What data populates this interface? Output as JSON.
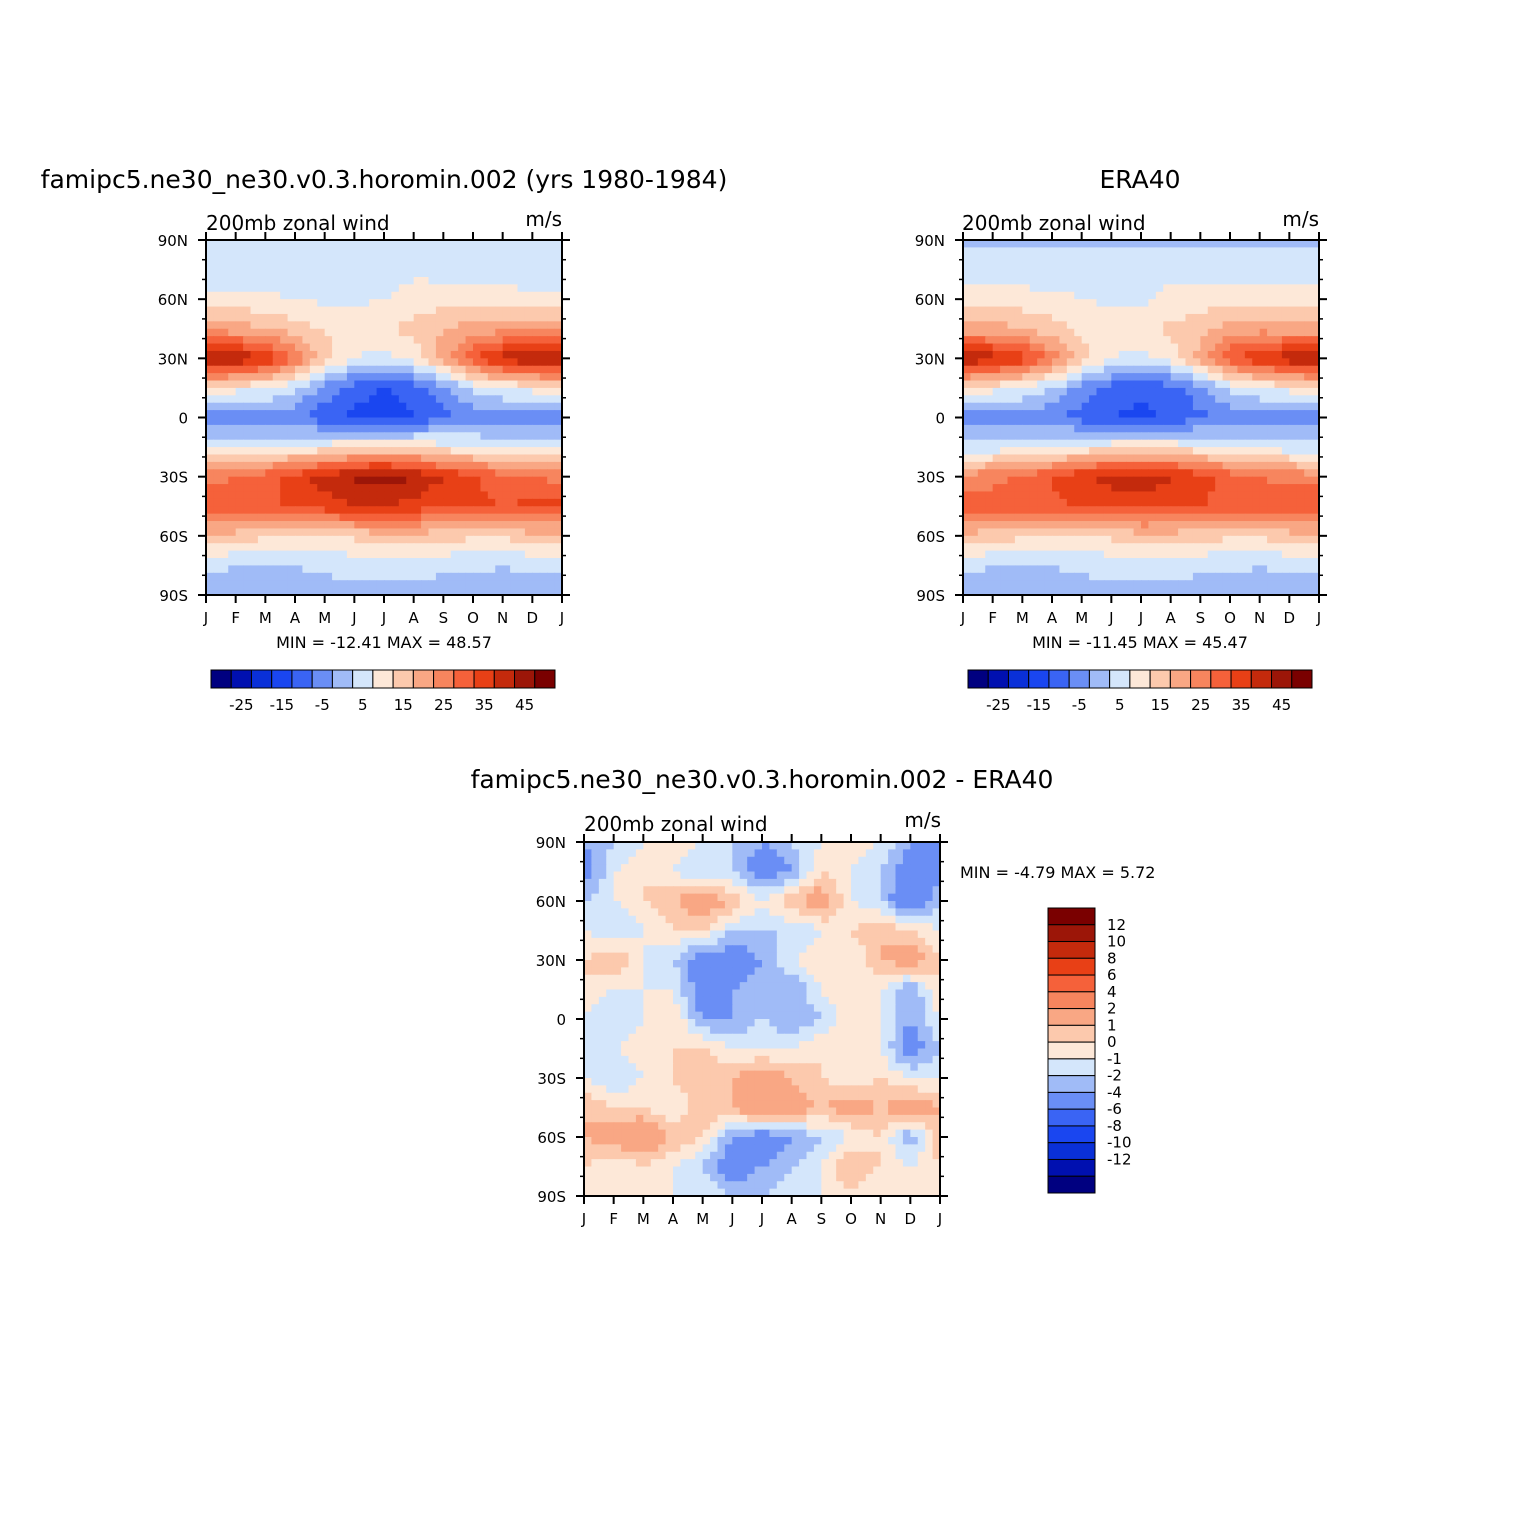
{
  "chart_data": [
    {
      "type": "heatmap",
      "title": "famipc5.ne30_ne30.v0.3.horomin.002 (yrs 1980-1984)",
      "subtitle": "200mb zonal wind",
      "units": "m/s",
      "x_ticks": [
        "J",
        "F",
        "M",
        "A",
        "M",
        "J",
        "J",
        "A",
        "S",
        "O",
        "N",
        "D",
        "J"
      ],
      "y_ticks": [
        "90N",
        "60N",
        "30N",
        "0",
        "30S",
        "60S",
        "90S"
      ],
      "y_values": [
        90,
        60,
        30,
        0,
        -30,
        -60,
        -90
      ],
      "stats": "MIN = -12.41 MAX = 48.57",
      "min": -12.41,
      "max": 48.57,
      "colorbar_labels": [
        "-25",
        "-15",
        "-5",
        "5",
        "15",
        "25",
        "35",
        "45"
      ],
      "colorbar_levels": [
        -30,
        -25,
        -20,
        -15,
        -10,
        -5,
        0,
        5,
        10,
        15,
        20,
        25,
        30,
        35,
        40,
        45,
        50
      ],
      "bands": [
        {
          "lat": 90,
          "values": [
            5,
            5,
            5,
            5,
            5,
            5,
            5,
            5,
            5,
            5,
            5,
            5,
            5
          ]
        },
        {
          "lat": 75,
          "values": [
            6,
            6,
            6,
            7,
            9,
            10,
            8,
            9,
            8,
            7,
            6,
            6,
            6
          ]
        },
        {
          "lat": 60,
          "values": [
            12,
            12,
            11,
            10,
            9,
            9,
            10,
            12,
            13,
            14,
            13,
            12,
            12
          ]
        },
        {
          "lat": 45,
          "values": [
            22,
            22,
            20,
            17,
            14,
            13,
            14,
            17,
            20,
            22,
            23,
            22,
            22
          ]
        },
        {
          "lat": 30,
          "values": [
            48,
            45,
            40,
            30,
            18,
            10,
            8,
            12,
            22,
            35,
            42,
            46,
            48
          ]
        },
        {
          "lat": 15,
          "values": [
            14,
            12,
            10,
            6,
            -2,
            -8,
            -10,
            -8,
            -2,
            6,
            10,
            12,
            14
          ]
        },
        {
          "lat": 0,
          "values": [
            -3,
            -3,
            -2,
            -4,
            -8,
            -11,
            -12,
            -10,
            -6,
            -3,
            -3,
            -3,
            -3
          ]
        },
        {
          "lat": -15,
          "values": [
            8,
            8,
            9,
            10,
            12,
            14,
            15,
            14,
            12,
            10,
            9,
            8,
            8
          ]
        },
        {
          "lat": -30,
          "values": [
            28,
            30,
            33,
            38,
            42,
            46,
            48,
            45,
            40,
            36,
            32,
            30,
            28
          ]
        },
        {
          "lat": -45,
          "values": [
            36,
            34,
            34,
            36,
            38,
            40,
            40,
            38,
            36,
            36,
            35,
            36,
            36
          ]
        },
        {
          "lat": -60,
          "values": [
            18,
            18,
            16,
            14,
            14,
            16,
            18,
            18,
            17,
            16,
            16,
            18,
            18
          ]
        },
        {
          "lat": -75,
          "values": [
            6,
            5,
            5,
            5,
            6,
            7,
            7,
            7,
            6,
            6,
            5,
            6,
            6
          ]
        },
        {
          "lat": -90,
          "values": [
            3,
            3,
            3,
            3,
            3,
            3,
            3,
            3,
            3,
            3,
            3,
            3,
            3
          ]
        }
      ]
    },
    {
      "type": "heatmap",
      "title": "ERA40",
      "subtitle": "200mb zonal wind",
      "units": "m/s",
      "x_ticks": [
        "J",
        "F",
        "M",
        "A",
        "M",
        "J",
        "J",
        "A",
        "S",
        "O",
        "N",
        "D",
        "J"
      ],
      "y_ticks": [
        "90N",
        "60N",
        "30N",
        "0",
        "30S",
        "60S",
        "90S"
      ],
      "y_values": [
        90,
        60,
        30,
        0,
        -30,
        -60,
        -90
      ],
      "stats": "MIN = -11.45 MAX = 45.47",
      "min": -11.45,
      "max": 45.47,
      "colorbar_labels": [
        "-25",
        "-15",
        "-5",
        "5",
        "15",
        "25",
        "35",
        "45"
      ],
      "colorbar_levels": [
        -30,
        -25,
        -20,
        -15,
        -10,
        -5,
        0,
        5,
        10,
        15,
        20,
        25,
        30,
        35,
        40,
        45,
        50
      ],
      "bands": [
        {
          "lat": 90,
          "values": [
            4,
            4,
            4,
            4,
            4,
            4,
            4,
            4,
            4,
            4,
            4,
            4,
            4
          ]
        },
        {
          "lat": 75,
          "values": [
            7,
            7,
            7,
            7,
            8,
            9,
            9,
            9,
            8,
            8,
            7,
            7,
            7
          ]
        },
        {
          "lat": 60,
          "values": [
            12,
            12,
            12,
            11,
            10,
            9,
            9,
            11,
            12,
            13,
            13,
            12,
            12
          ]
        },
        {
          "lat": 45,
          "values": [
            22,
            22,
            20,
            17,
            14,
            13,
            13,
            16,
            19,
            22,
            23,
            22,
            22
          ]
        },
        {
          "lat": 30,
          "values": [
            45,
            43,
            38,
            28,
            17,
            10,
            8,
            12,
            22,
            34,
            40,
            44,
            45
          ]
        },
        {
          "lat": 15,
          "values": [
            14,
            12,
            10,
            5,
            -2,
            -7,
            -9,
            -7,
            -2,
            6,
            10,
            12,
            14
          ]
        },
        {
          "lat": 0,
          "values": [
            -3,
            -3,
            -3,
            -4,
            -7,
            -10,
            -11,
            -9,
            -6,
            -3,
            -3,
            -3,
            -3
          ]
        },
        {
          "lat": -15,
          "values": [
            7,
            7,
            8,
            9,
            11,
            13,
            14,
            13,
            11,
            9,
            8,
            7,
            7
          ]
        },
        {
          "lat": -30,
          "values": [
            27,
            28,
            31,
            35,
            39,
            42,
            43,
            41,
            37,
            33,
            30,
            28,
            27
          ]
        },
        {
          "lat": -45,
          "values": [
            35,
            33,
            33,
            34,
            36,
            37,
            37,
            36,
            35,
            34,
            34,
            35,
            35
          ]
        },
        {
          "lat": -60,
          "values": [
            18,
            18,
            16,
            14,
            14,
            16,
            18,
            18,
            17,
            16,
            16,
            18,
            18
          ]
        },
        {
          "lat": -75,
          "values": [
            6,
            5,
            5,
            5,
            6,
            7,
            7,
            7,
            6,
            6,
            5,
            6,
            6
          ]
        },
        {
          "lat": -90,
          "values": [
            3,
            3,
            3,
            3,
            3,
            3,
            3,
            3,
            3,
            3,
            3,
            3,
            3
          ]
        }
      ]
    },
    {
      "type": "heatmap",
      "title": "famipc5.ne30_ne30.v0.3.horomin.002 - ERA40",
      "subtitle": "200mb zonal wind",
      "units": "m/s",
      "x_ticks": [
        "J",
        "F",
        "M",
        "A",
        "M",
        "J",
        "J",
        "A",
        "S",
        "O",
        "N",
        "D",
        "J"
      ],
      "y_ticks": [
        "90N",
        "60N",
        "30N",
        "0",
        "30S",
        "60S",
        "90S"
      ],
      "y_values": [
        90,
        60,
        30,
        0,
        -30,
        -60,
        -90
      ],
      "stats": "MIN = -4.79 MAX = 5.72",
      "min": -4.79,
      "max": 5.72,
      "colorbar_labels": [
        "12",
        "10",
        "8",
        "6",
        "4",
        "2",
        "1",
        "0",
        "-1",
        "-2",
        "-4",
        "-6",
        "-8",
        "-10",
        "-12"
      ],
      "colorbar_levels": [
        -14,
        -12,
        -10,
        -8,
        -6,
        -4,
        -2,
        -1,
        0,
        1,
        2,
        4,
        6,
        8,
        10,
        12,
        14
      ],
      "bands": [
        {
          "lat": 90,
          "values": [
            -2,
            -1,
            0,
            1,
            0,
            -1,
            -2,
            -1,
            0,
            1,
            0,
            -2,
            -2
          ]
        },
        {
          "lat": 75,
          "values": [
            -3,
            0,
            1,
            0,
            -1,
            -1,
            -3,
            -2,
            1,
            0,
            -1,
            -3,
            -3
          ]
        },
        {
          "lat": 60,
          "values": [
            -1,
            0,
            1,
            2,
            3,
            2,
            0,
            2,
            3,
            0,
            -1,
            -4,
            -1
          ]
        },
        {
          "lat": 45,
          "values": [
            0,
            -1,
            0,
            1,
            1,
            -1,
            -1,
            -1,
            0,
            1,
            2,
            1,
            0
          ]
        },
        {
          "lat": 30,
          "values": [
            1,
            2,
            0,
            -1,
            -3,
            -3,
            -2,
            0,
            1,
            0,
            2,
            3,
            1
          ]
        },
        {
          "lat": 15,
          "values": [
            1,
            0,
            0,
            0,
            -3,
            -2,
            -1,
            -2,
            0,
            1,
            0,
            -2,
            1
          ]
        },
        {
          "lat": 0,
          "values": [
            0,
            -1,
            0,
            1,
            -2,
            -2,
            -1,
            -2,
            -1,
            1,
            0,
            -2,
            0
          ]
        },
        {
          "lat": -15,
          "values": [
            -1,
            0,
            1,
            1,
            1,
            0,
            0,
            0,
            1,
            1,
            0,
            -3,
            -1
          ]
        },
        {
          "lat": -30,
          "values": [
            0,
            -1,
            0,
            1,
            2,
            2,
            3,
            2,
            1,
            0,
            1,
            0,
            0
          ]
        },
        {
          "lat": -45,
          "values": [
            2,
            1,
            1,
            0,
            2,
            2,
            4,
            3,
            2,
            3,
            2,
            3,
            2
          ]
        },
        {
          "lat": -60,
          "values": [
            2,
            3,
            4,
            2,
            1,
            -2,
            -3,
            -2,
            -1,
            0,
            1,
            -2,
            2
          ]
        },
        {
          "lat": -75,
          "values": [
            1,
            0,
            1,
            0,
            -1,
            -3,
            -2,
            -1,
            0,
            2,
            1,
            0,
            1
          ]
        },
        {
          "lat": -90,
          "values": [
            0,
            0,
            0,
            0,
            0,
            -1,
            -1,
            0,
            0,
            1,
            0,
            0,
            0
          ]
        }
      ]
    }
  ],
  "colors": {
    "levels": [
      "#000080",
      "#0010b0",
      "#0a30d8",
      "#1a46f0",
      "#3a64f4",
      "#6a8ef5",
      "#a0bbf7",
      "#d4e6fb",
      "#fde8d8",
      "#fcc9ad",
      "#f9a784",
      "#f7855e",
      "#f5613a",
      "#e84016",
      "#c42a0c",
      "#9c1608",
      "#7a0000"
    ]
  },
  "labels": {
    "min": "MIN =",
    "max": "MAX ="
  }
}
